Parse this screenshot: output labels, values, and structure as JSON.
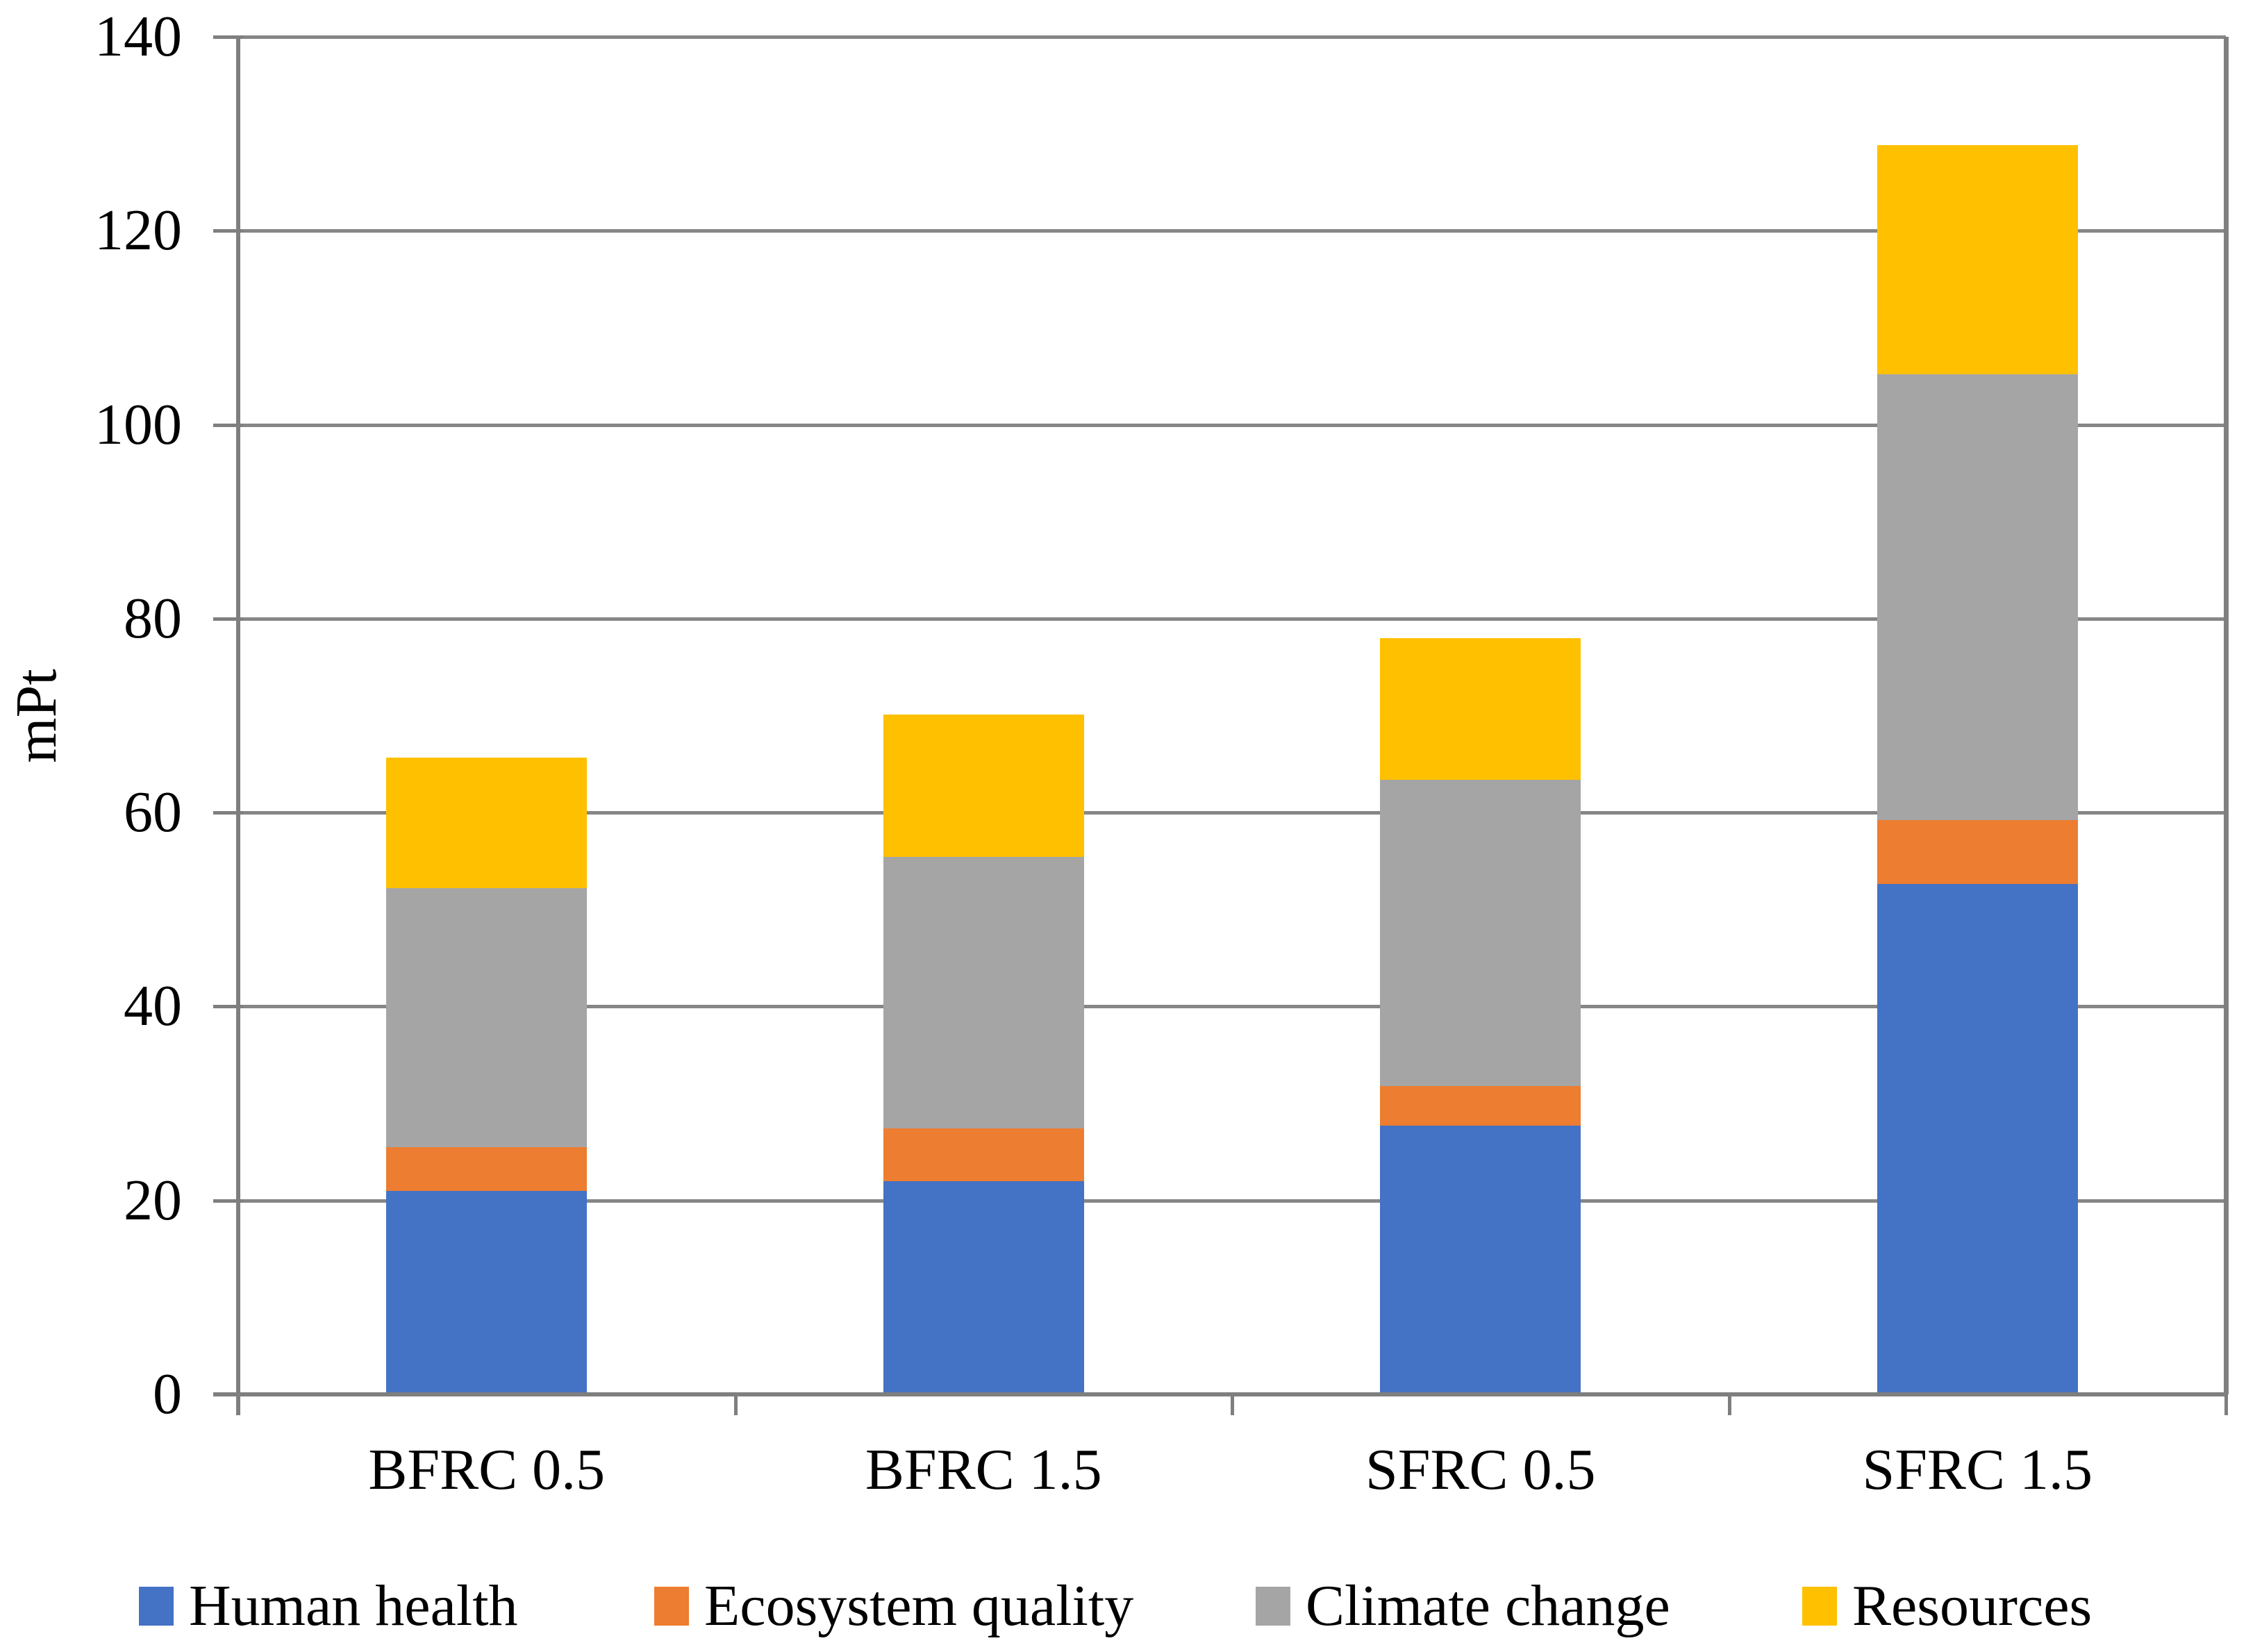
{
  "y_axis_title": "mPt",
  "chart_data": {
    "type": "bar",
    "stacked": true,
    "title": "",
    "xlabel": "",
    "ylabel": "mPt",
    "ylim": [
      0,
      140
    ],
    "ytick_step": 20,
    "ytick_labels": [
      "0",
      "20",
      "40",
      "60",
      "80",
      "100",
      "120",
      "140"
    ],
    "grid": "horizontal",
    "legend_position": "bottom",
    "categories": [
      "BFRC 0.5",
      "BFRC 1.5",
      "SFRC 0.5",
      "SFRC 1.5"
    ],
    "series": [
      {
        "name": "Human health",
        "color": "#4472C4",
        "values": [
          21.0,
          22.0,
          27.7,
          52.6
        ]
      },
      {
        "name": "Ecosystem quality",
        "color": "#ED7D31",
        "values": [
          4.5,
          5.4,
          4.1,
          6.6
        ]
      },
      {
        "name": "Climate change",
        "color": "#A5A5A5",
        "values": [
          26.7,
          28.0,
          31.6,
          46.0
        ]
      },
      {
        "name": "Resources",
        "color": "#FFC000",
        "values": [
          13.5,
          14.7,
          14.6,
          23.6
        ]
      }
    ],
    "stacked_totals": [
      65.7,
      70.1,
      78.0,
      128.8
    ],
    "colors": {
      "gridline": "#868686",
      "axis": "#7f7f7f",
      "text": "#000000",
      "background": "#ffffff"
    }
  }
}
